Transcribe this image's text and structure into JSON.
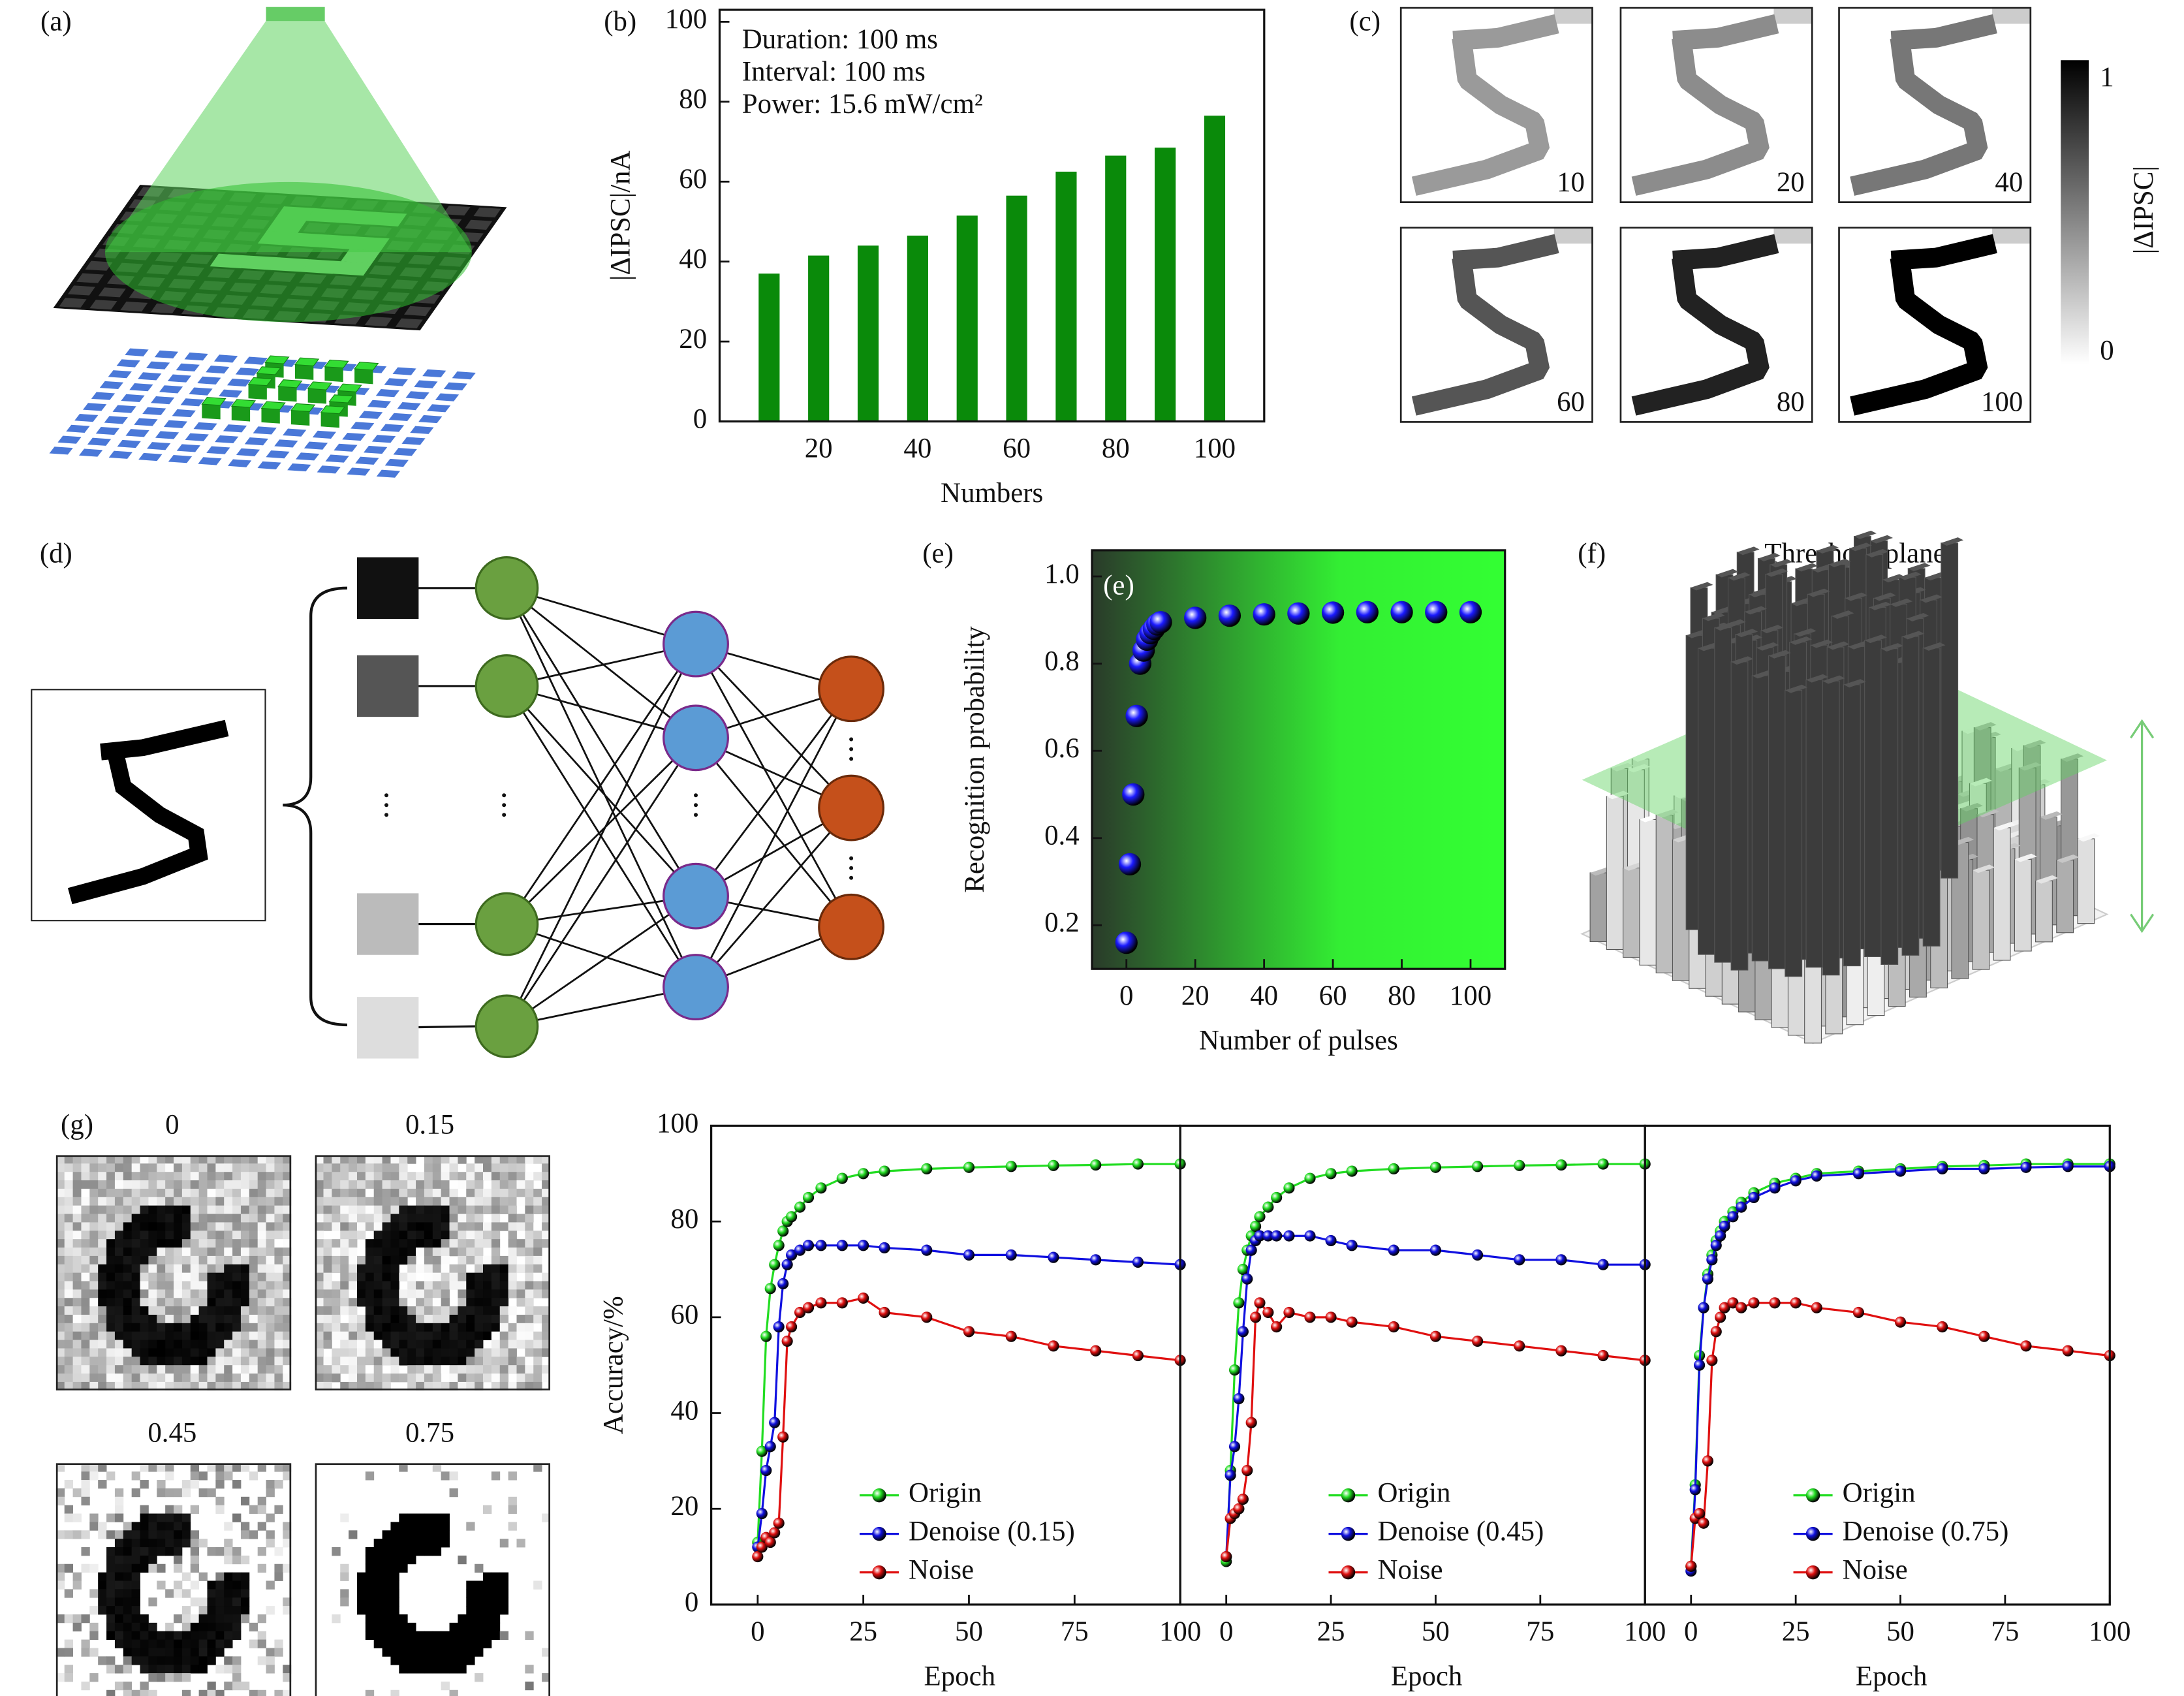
{
  "figure": {
    "panel_labels": [
      "(a)",
      "(b)",
      "(c)",
      "(d)",
      "(e)",
      "(f)",
      "(g)"
    ],
    "c_labels": [
      "10",
      "20",
      "40",
      "60",
      "80",
      "100"
    ],
    "colorbar": {
      "label": "|ΔIPSC|",
      "max": "1",
      "min": "0"
    },
    "f_title": "Threshold plane",
    "g_labels": [
      "0",
      "0.15",
      "0.45",
      "0.75"
    ]
  },
  "chart_data": [
    {
      "type": "bar",
      "annotations": [
        "Duration: 100 ms",
        "Interval: 100 ms",
        "Power: 15.6 mW/cm²"
      ],
      "x_label": "Numbers",
      "y_label": "|ΔIPSC|/nA",
      "x": [
        10,
        20,
        30,
        40,
        50,
        60,
        70,
        80,
        90,
        100
      ],
      "values": [
        37,
        41.5,
        44,
        46.5,
        51.5,
        56.5,
        62.5,
        66.5,
        68.5,
        76.5
      ],
      "color": "#0a8a0a",
      "xlim": [
        0,
        110
      ],
      "xticks": [
        20,
        40,
        60,
        80,
        100
      ],
      "ylim": [
        0,
        103
      ],
      "yticks": [
        0,
        20,
        40,
        60,
        80,
        100
      ]
    },
    {
      "type": "scatter",
      "annotation": "(e)",
      "x_label": "Number of pulses",
      "y_label": "Recognition probability",
      "x": [
        0,
        1,
        2,
        3,
        4,
        5,
        6,
        7,
        8,
        9,
        10,
        20,
        30,
        40,
        50,
        60,
        70,
        80,
        90,
        100
      ],
      "values": [
        0.16,
        0.34,
        0.5,
        0.68,
        0.8,
        0.83,
        0.855,
        0.87,
        0.88,
        0.89,
        0.895,
        0.905,
        0.91,
        0.913,
        0.915,
        0.917,
        0.918,
        0.918,
        0.918,
        0.918
      ],
      "color": "#1a1aff",
      "xlim": [
        -10,
        110
      ],
      "xticks": [
        0,
        20,
        40,
        60,
        80,
        100
      ],
      "ylim": [
        0.1,
        1.06
      ],
      "yticks": [
        0.2,
        0.4,
        0.6,
        0.8,
        {
          "value": 1,
          "label": "1.0"
        }
      ]
    },
    {
      "type": "line",
      "x_label": "Epoch",
      "y_label": "Accuracy/%",
      "x": [
        0,
        1,
        2,
        3,
        4,
        5,
        6,
        7,
        8,
        10,
        12,
        15,
        20,
        25,
        30,
        40,
        50,
        60,
        70,
        80,
        90,
        100
      ],
      "series": [
        {
          "name": "Origin",
          "color": "#22dd22",
          "values": [
            13,
            32,
            56,
            66,
            71,
            75,
            78,
            80,
            81,
            83,
            85,
            87,
            89,
            90,
            90.5,
            91,
            91.3,
            91.5,
            91.7,
            91.8,
            92,
            92
          ]
        },
        {
          "name": "Denoise (0.15)",
          "color": "#1010e0",
          "values": [
            12,
            19,
            28,
            33,
            38,
            58,
            67,
            71,
            73,
            74,
            75,
            75,
            75,
            75,
            74.5,
            74,
            73,
            73,
            72.5,
            72,
            71.5,
            71
          ]
        },
        {
          "name": "Noise",
          "color": "#e01010",
          "values": [
            10,
            12,
            14,
            13,
            15,
            17,
            35,
            55,
            58,
            61,
            62,
            63,
            63,
            64,
            61,
            60,
            57,
            56,
            54,
            53,
            52,
            51
          ]
        }
      ],
      "xlim": [
        -11,
        100
      ],
      "xticks": [
        0,
        25,
        50,
        75,
        100
      ],
      "ylim": [
        0,
        100
      ],
      "yticks": [
        0,
        20,
        40,
        60,
        80,
        100
      ]
    },
    {
      "type": "line",
      "x_label": "Epoch",
      "x": [
        0,
        1,
        2,
        3,
        4,
        5,
        6,
        7,
        8,
        10,
        12,
        15,
        20,
        25,
        30,
        40,
        50,
        60,
        70,
        80,
        90,
        100
      ],
      "series": [
        {
          "name": "Origin",
          "color": "#22dd22",
          "values": [
            9,
            28,
            49,
            63,
            70,
            74,
            77,
            79,
            81,
            83,
            85,
            87,
            89,
            90,
            90.5,
            91,
            91.3,
            91.5,
            91.7,
            91.8,
            92,
            92
          ]
        },
        {
          "name": "Denoise (0.45)",
          "color": "#1010e0",
          "values": [
            10,
            27,
            33,
            43,
            57,
            68,
            74,
            76,
            77,
            77,
            77,
            77,
            77,
            76,
            75,
            74,
            74,
            73,
            72,
            72,
            71,
            71
          ]
        },
        {
          "name": "Noise",
          "color": "#e01010",
          "values": [
            10,
            18,
            19,
            20,
            22,
            28,
            38,
            60,
            63,
            61,
            58,
            61,
            60,
            60,
            59,
            58,
            56,
            55,
            54,
            53,
            52,
            51
          ]
        }
      ],
      "xlim": [
        -11,
        100
      ],
      "xticks": [
        0,
        25,
        50,
        75,
        100
      ],
      "ylim": [
        0,
        100
      ]
    },
    {
      "type": "line",
      "x_label": "Epoch",
      "x": [
        0,
        1,
        2,
        3,
        4,
        5,
        6,
        7,
        8,
        10,
        12,
        15,
        20,
        25,
        30,
        40,
        50,
        60,
        70,
        80,
        90,
        100
      ],
      "series": [
        {
          "name": "Origin",
          "color": "#22dd22",
          "values": [
            8,
            25,
            52,
            62,
            69,
            73,
            76,
            78,
            80,
            82,
            84,
            86,
            88,
            89,
            90,
            90.5,
            91,
            91.5,
            91.7,
            92,
            92,
            92
          ]
        },
        {
          "name": "Denoise (0.75)",
          "color": "#1010e0",
          "values": [
            7,
            24,
            50,
            62,
            68,
            72,
            75,
            77,
            79,
            81,
            83,
            85,
            87,
            88.5,
            89.5,
            90,
            90.5,
            91,
            91,
            91.3,
            91.5,
            91.5
          ]
        },
        {
          "name": "Noise",
          "color": "#e01010",
          "values": [
            8,
            18,
            19,
            17,
            30,
            51,
            57,
            60,
            62,
            63,
            62,
            63,
            63,
            63,
            62,
            61,
            59,
            58,
            56,
            54,
            53,
            52
          ]
        }
      ],
      "xlim": [
        -11,
        100
      ],
      "xticks": [
        0,
        25,
        50,
        75,
        100
      ],
      "ylim": [
        0,
        100
      ]
    }
  ]
}
